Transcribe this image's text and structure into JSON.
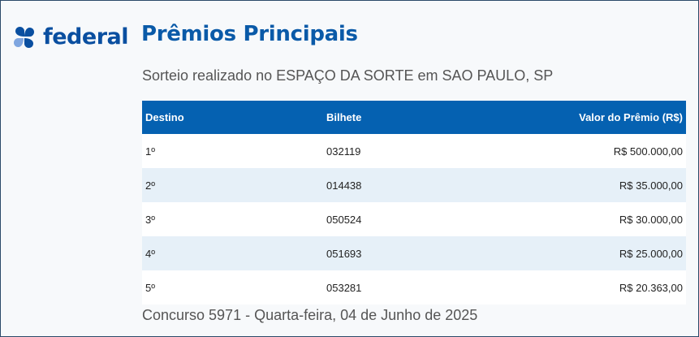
{
  "brand": {
    "logo_text": "federal",
    "color": "#0a4fa0"
  },
  "page": {
    "title": "Prêmios Principais",
    "subtitle": "Sorteio realizado no ESPAÇO DA SORTE em SAO PAULO, SP",
    "footer": "Concurso 5971 - Quarta-feira, 04 de Junho de 2025"
  },
  "table": {
    "headers": [
      "Destino",
      "Bilhete",
      "Valor do Prêmio (R$)"
    ],
    "rows": [
      [
        "1º",
        "032119",
        "R$ 500.000,00"
      ],
      [
        "2º",
        "014438",
        "R$ 35.000,00"
      ],
      [
        "3º",
        "050524",
        "R$ 30.000,00"
      ],
      [
        "4º",
        "051693",
        "R$ 25.000,00"
      ],
      [
        "5º",
        "053281",
        "R$ 20.363,00"
      ]
    ],
    "header_color": "#0561b1"
  }
}
